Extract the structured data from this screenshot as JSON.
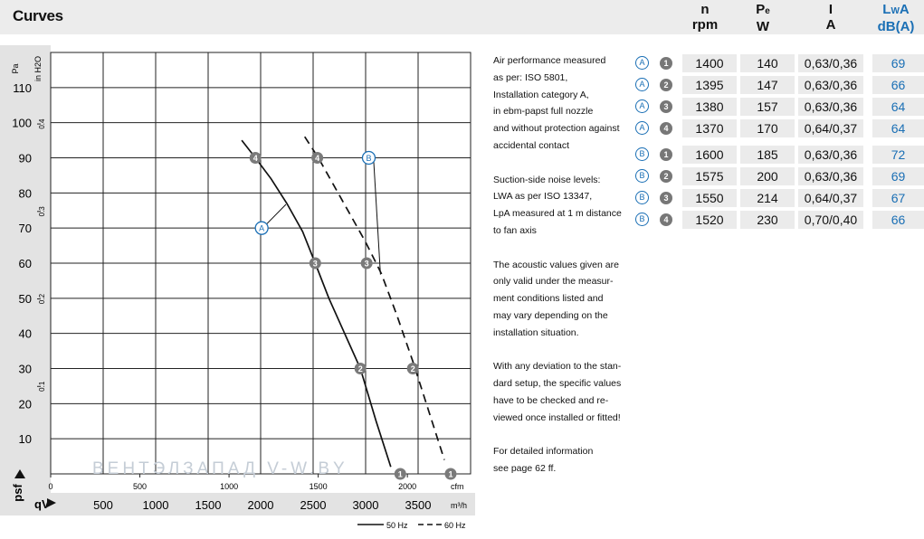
{
  "header": {
    "title": "Curves",
    "columns": [
      {
        "id": "n",
        "line1": "n",
        "line2": "rpm"
      },
      {
        "id": "p",
        "line1": "P",
        "sub": "e",
        "line2": "W"
      },
      {
        "id": "i",
        "line1": "I",
        "line2": "A"
      },
      {
        "id": "lwa",
        "line1": "L",
        "sub": "W",
        "line1b": "A",
        "line2": "dB(A)"
      }
    ]
  },
  "notes": [
    [
      "Air performance measured",
      "as per: ISO 5801,",
      "Installation category A,",
      "in ebm-papst full nozzle",
      "and without protection against",
      "accidental contact"
    ],
    [
      "Suction-side noise levels:",
      "LWA as per ISO 13347,",
      "LpA measured at 1 m distance",
      "to fan axis"
    ],
    [
      "The acoustic values given are",
      "only valid under the measur-",
      "ment conditions listed and",
      "may vary depending on the",
      "installation situation."
    ],
    [
      "With any deviation to the stan-",
      "dard setup, the specific values",
      "have to be checked and re-",
      "viewed once installed or fitted!"
    ],
    [
      "For detailed information",
      "see page 62 ff."
    ]
  ],
  "table": {
    "rows": [
      {
        "set": "A",
        "point": "1",
        "n": "1400",
        "p": "140",
        "i": "0,63/0,36",
        "lwa": "69"
      },
      {
        "set": "A",
        "point": "2",
        "n": "1395",
        "p": "147",
        "i": "0,63/0,36",
        "lwa": "66"
      },
      {
        "set": "A",
        "point": "3",
        "n": "1380",
        "p": "157",
        "i": "0,63/0,36",
        "lwa": "64"
      },
      {
        "set": "A",
        "point": "4",
        "n": "1370",
        "p": "170",
        "i": "0,64/0,37",
        "lwa": "64"
      },
      {
        "set": "B",
        "point": "1",
        "n": "1600",
        "p": "185",
        "i": "0,63/0,36",
        "lwa": "72"
      },
      {
        "set": "B",
        "point": "2",
        "n": "1575",
        "p": "200",
        "i": "0,63/0,36",
        "lwa": "69"
      },
      {
        "set": "B",
        "point": "3",
        "n": "1550",
        "p": "214",
        "i": "0,64/0,37",
        "lwa": "67"
      },
      {
        "set": "B",
        "point": "4",
        "n": "1520",
        "p": "230",
        "i": "0,70/0,40",
        "lwa": "66"
      }
    ]
  },
  "chart_data": {
    "type": "line",
    "x_unit": "m³/h",
    "x_unit_secondary": "cfm",
    "y_unit": "Pa",
    "y_unit_secondary": "in H2O",
    "xlabel": "qV",
    "ylabel": "psf",
    "xlim": [
      0,
      4000
    ],
    "ylim": [
      0,
      120
    ],
    "x_ticks": [
      500,
      1000,
      1500,
      2000,
      2500,
      3000,
      3500
    ],
    "y_ticks": [
      10,
      20,
      30,
      40,
      50,
      60,
      70,
      80,
      90,
      100,
      110
    ],
    "x_ticks_secondary": [
      0,
      500,
      1000,
      1500,
      2000
    ],
    "y_ticks_secondary": [
      0.1,
      0.2,
      0.3,
      0.4
    ],
    "series": [
      {
        "name": "50 Hz",
        "style": "solid",
        "label": "A",
        "x": [
          1820,
          1950,
          2100,
          2250,
          2400,
          2520,
          2650,
          2800,
          2950,
          3100,
          3240
        ],
        "y": [
          95,
          90,
          84,
          77,
          69,
          60,
          50,
          40,
          30,
          15,
          2
        ],
        "points": [
          {
            "id": "4",
            "x": 1950,
            "y": 90
          },
          {
            "id": "3",
            "x": 2520,
            "y": 60
          },
          {
            "id": "2",
            "x": 2950,
            "y": 30
          },
          {
            "id": "1",
            "x": 3330,
            "y": 0
          }
        ]
      },
      {
        "name": "60 Hz",
        "style": "dashed",
        "label": "B",
        "x": [
          2420,
          2550,
          2700,
          2850,
          3000,
          3150,
          3300,
          3450,
          3600,
          3750
        ],
        "y": [
          96,
          90,
          82,
          74,
          66,
          57,
          45,
          32,
          18,
          4
        ],
        "points": [
          {
            "id": "4",
            "x": 2540,
            "y": 90
          },
          {
            "id": "3",
            "x": 3010,
            "y": 60
          },
          {
            "id": "2",
            "x": 3450,
            "y": 30
          },
          {
            "id": "1",
            "x": 3810,
            "y": 0
          }
        ]
      }
    ],
    "labels": [
      {
        "text": "A",
        "x": 2010,
        "y": 70
      },
      {
        "text": "B",
        "x": 3030,
        "y": 90
      }
    ],
    "legend": [
      {
        "label": "50 Hz",
        "style": "solid"
      },
      {
        "label": "60 Hz",
        "style": "dashed"
      }
    ],
    "watermark": "ВЕНТЭЛЗАПАД   V-W.BY"
  }
}
